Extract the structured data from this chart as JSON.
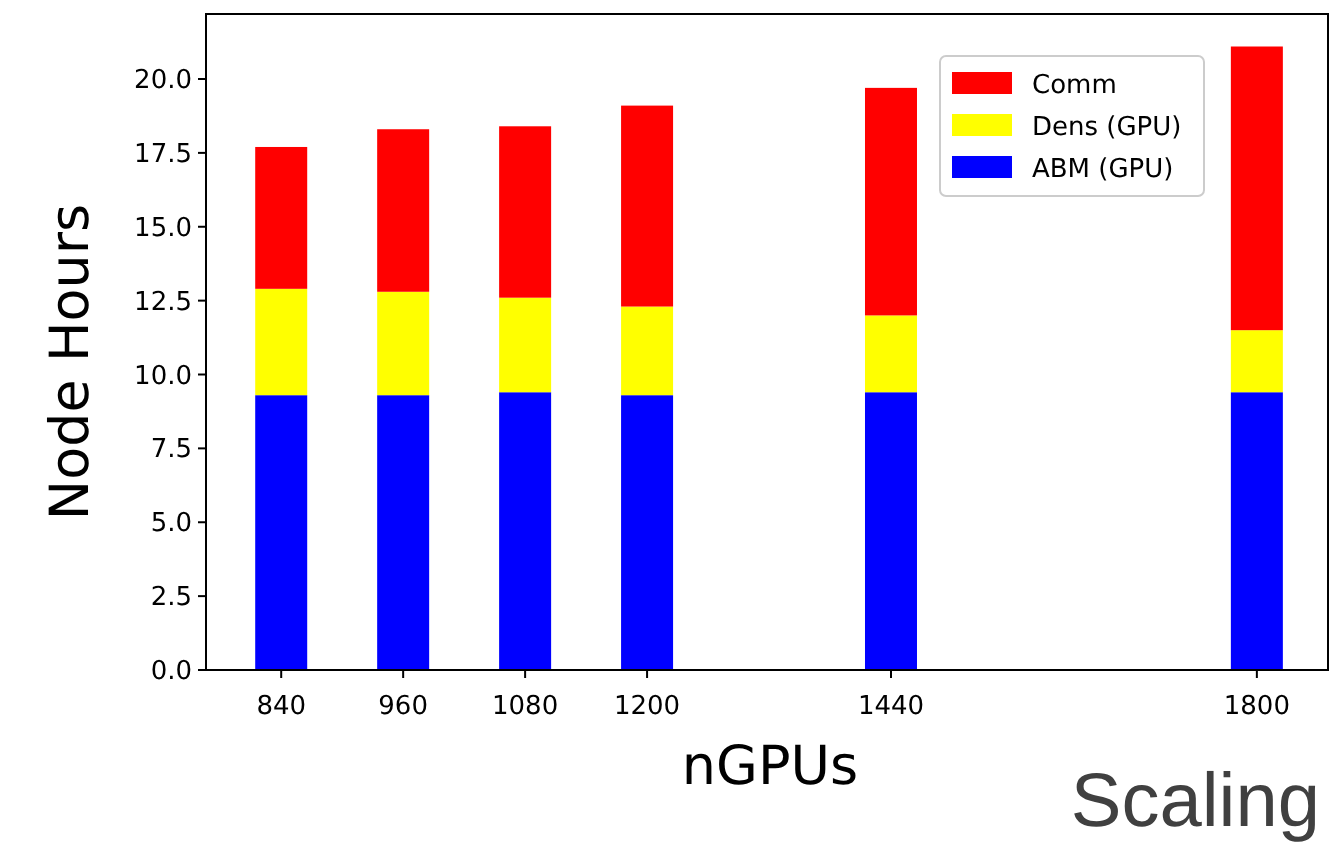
{
  "chart_data": {
    "type": "bar",
    "stacked": true,
    "xlabel": "nGPUs",
    "ylabel": "Node Hours",
    "x": [
      840,
      960,
      1080,
      1200,
      1440,
      1800
    ],
    "series": [
      {
        "name": "ABM (GPU)",
        "color": "#0000ff",
        "values": [
          9.3,
          9.3,
          9.4,
          9.3,
          9.4,
          9.4
        ]
      },
      {
        "name": "Dens (GPU)",
        "color": "#ffff00",
        "values": [
          3.6,
          3.5,
          3.2,
          3.0,
          2.6,
          2.1
        ]
      },
      {
        "name": "Comm",
        "color": "#ff0000",
        "values": [
          4.8,
          5.5,
          5.8,
          6.8,
          7.7,
          9.6
        ]
      }
    ],
    "xlim": [
      766,
      1870
    ],
    "xticks": [
      840,
      960,
      1080,
      1200,
      1440,
      1800
    ],
    "ylim": [
      0,
      22.2
    ],
    "yticks": [
      {
        "value": 0,
        "label": "0.0"
      },
      {
        "value": 2.5,
        "label": "2.5"
      },
      {
        "value": 5,
        "label": "5.0"
      },
      {
        "value": 7.5,
        "label": "7.5"
      },
      {
        "value": 10,
        "label": "10.0"
      },
      {
        "value": 12.5,
        "label": "12.5"
      },
      {
        "value": 15,
        "label": "15.0"
      },
      {
        "value": 17.5,
        "label": "17.5"
      },
      {
        "value": 20,
        "label": "20.0"
      }
    ],
    "legend": "top right",
    "grid": false,
    "annotations": [
      "Scaling"
    ]
  }
}
